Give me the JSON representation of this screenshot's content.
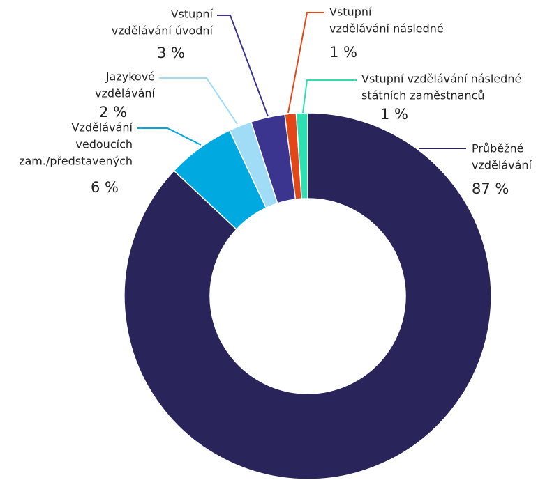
{
  "chart_data": {
    "type": "donut",
    "categories": [
      [
        "Průběžné",
        "vzdělávání"
      ],
      [
        "Vzdělávání",
        "vedoucích",
        "zam./představených"
      ],
      [
        "Jazykové",
        "vzdělávání"
      ],
      [
        "Vstupní",
        "vzdělávání úvodní"
      ],
      [
        "Vstupní",
        "vzdělávání následné"
      ],
      [
        "Vstupní vzdělávání následné",
        "státních zaměstnanců"
      ]
    ],
    "values": [
      87,
      6,
      2,
      3,
      1,
      1
    ],
    "value_labels": [
      "87 %",
      "6 %",
      "2 %",
      "3 %",
      "1 %",
      "1 %"
    ],
    "colors": [
      "#29245a",
      "#00a9e0",
      "#a0dcf5",
      "#3b3590",
      "#e2471a",
      "#2fdfb2"
    ]
  }
}
